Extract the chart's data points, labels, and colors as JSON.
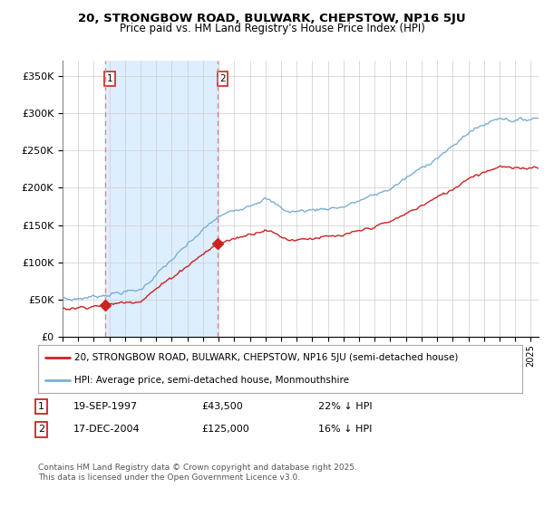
{
  "title": "20, STRONGBOW ROAD, BULWARK, CHEPSTOW, NP16 5JU",
  "subtitle": "Price paid vs. HM Land Registry's House Price Index (HPI)",
  "ylim": [
    0,
    370000
  ],
  "yticks": [
    0,
    50000,
    100000,
    150000,
    200000,
    250000,
    300000,
    350000
  ],
  "ytick_labels": [
    "£0",
    "£50K",
    "£100K",
    "£150K",
    "£200K",
    "£250K",
    "£300K",
    "£350K"
  ],
  "sale1_date": 1997.72,
  "sale1_price": 43500,
  "sale2_date": 2004.96,
  "sale2_price": 125000,
  "red_line_color": "#cc2222",
  "blue_line_color": "#7ab0d4",
  "sale_marker_color": "#cc2222",
  "dashed_line_color": "#dd8888",
  "shade_color": "#ddeeff",
  "legend_label_red": "20, STRONGBOW ROAD, BULWARK, CHEPSTOW, NP16 5JU (semi-detached house)",
  "legend_label_blue": "HPI: Average price, semi-detached house, Monmouthshire",
  "table_row1": [
    "1",
    "19-SEP-1997",
    "£43,500",
    "22% ↓ HPI"
  ],
  "table_row2": [
    "2",
    "17-DEC-2004",
    "£125,000",
    "16% ↓ HPI"
  ],
  "footer": "Contains HM Land Registry data © Crown copyright and database right 2025.\nThis data is licensed under the Open Government Licence v3.0.",
  "background_color": "#ffffff",
  "grid_color": "#cccccc"
}
